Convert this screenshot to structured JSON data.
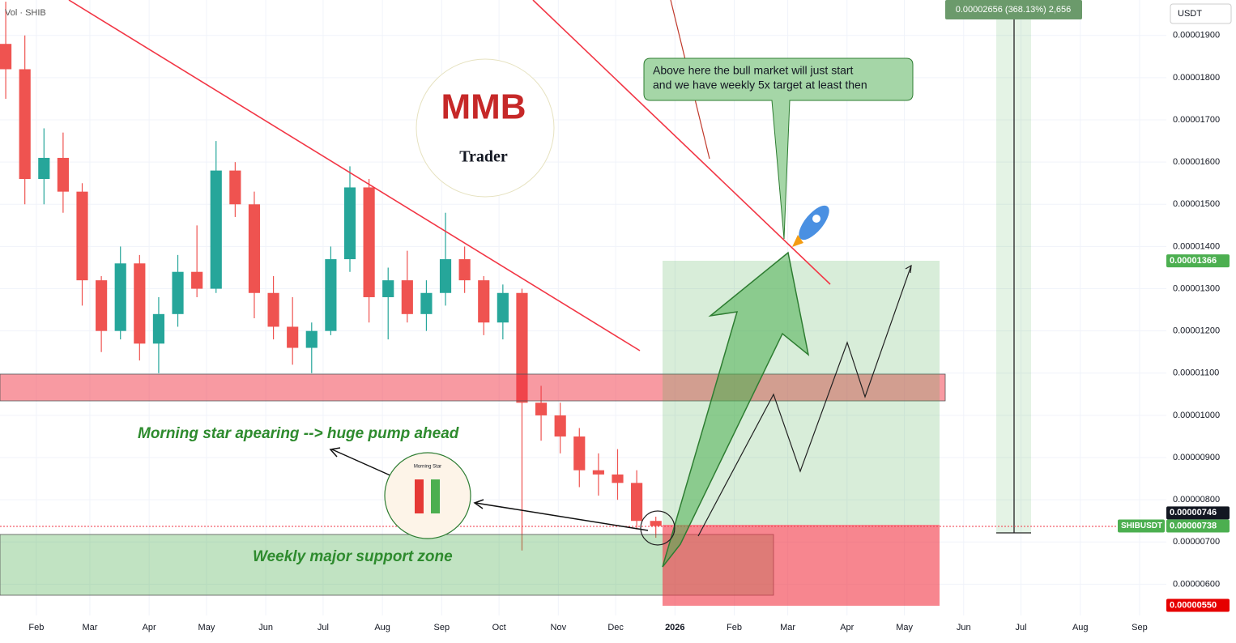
{
  "header": {
    "volume_label": "Vol · SHIB",
    "currency": "USDT",
    "measure_label": "0.00002656 (368.13%) 2,656"
  },
  "annotations": {
    "bull_note": [
      "Above here the bull market will just start",
      "and we have weekly 5x target at least then"
    ],
    "morning_star_note": "Morning star apearing --> huge pump ahead",
    "support_note": "Weekly major support zone",
    "morning_star_icon": "Morning Star",
    "logo_letters": "MMB",
    "logo_word": "Trader"
  },
  "chart_data": {
    "type": "candlestick",
    "symbol": "SHIBUSDT",
    "up_color": "#26a69a",
    "down_color": "#ef5350",
    "x": [
      15,
      25,
      35,
      45,
      55,
      65,
      75,
      85,
      95,
      105,
      115,
      125,
      135,
      145,
      155,
      165,
      175,
      185,
      195,
      205,
      215,
      225,
      235,
      245,
      255,
      265,
      275,
      285,
      295,
      305,
      315,
      325,
      335,
      345,
      355
    ],
    "open": [
      1.88e-05,
      1.82e-05,
      1.56e-05,
      1.61e-05,
      1.53e-05,
      1.32e-05,
      1.2e-05,
      1.36e-05,
      1.17e-05,
      1.24e-05,
      1.34e-05,
      1.3e-05,
      1.58e-05,
      1.5e-05,
      1.29e-05,
      1.21e-05,
      1.16e-05,
      1.2e-05,
      1.37e-05,
      1.54e-05,
      1.28e-05,
      1.32e-05,
      1.24e-05,
      1.29e-05,
      1.37e-05,
      1.32e-05,
      1.22e-05,
      1.29e-05,
      1.03e-05,
      1e-05,
      9.5e-06,
      8.7e-06,
      8.6e-06,
      8.4e-06,
      7.5e-06
    ],
    "high": [
      1.98e-05,
      1.9e-05,
      1.68e-05,
      1.67e-05,
      1.55e-05,
      1.33e-05,
      1.4e-05,
      1.38e-05,
      1.28e-05,
      1.38e-05,
      1.45e-05,
      1.65e-05,
      1.6e-05,
      1.53e-05,
      1.33e-05,
      1.28e-05,
      1.22e-05,
      1.4e-05,
      1.59e-05,
      1.56e-05,
      1.35e-05,
      1.39e-05,
      1.32e-05,
      1.48e-05,
      1.4e-05,
      1.33e-05,
      1.31e-05,
      1.3e-05,
      1.07e-05,
      1.03e-05,
      9.7e-06,
      9.1e-06,
      9.2e-06,
      8.7e-06,
      7.6e-06
    ],
    "low": [
      1.75e-05,
      1.5e-05,
      1.5e-05,
      1.48e-05,
      1.26e-05,
      1.15e-05,
      1.18e-05,
      1.13e-05,
      1.1e-05,
      1.21e-05,
      1.28e-05,
      1.29e-05,
      1.47e-05,
      1.23e-05,
      1.18e-05,
      1.12e-05,
      1.1e-05,
      1.19e-05,
      1.34e-05,
      1.22e-05,
      1.18e-05,
      1.22e-05,
      1.2e-05,
      1.26e-05,
      1.29e-05,
      1.19e-05,
      1.18e-05,
      6.8e-06,
      9.4e-06,
      9.1e-06,
      8.3e-06,
      8.1e-06,
      8e-06,
      7.3e-06,
      7.1e-06
    ],
    "close": [
      1.82e-05,
      1.56e-05,
      1.61e-05,
      1.53e-05,
      1.32e-05,
      1.2e-05,
      1.36e-05,
      1.17e-05,
      1.24e-05,
      1.34e-05,
      1.3e-05,
      1.58e-05,
      1.5e-05,
      1.29e-05,
      1.21e-05,
      1.16e-05,
      1.2e-05,
      1.37e-05,
      1.54e-05,
      1.28e-05,
      1.32e-05,
      1.24e-05,
      1.29e-05,
      1.37e-05,
      1.32e-05,
      1.22e-05,
      1.29e-05,
      1.03e-05,
      1e-05,
      9.5e-06,
      8.7e-06,
      8.6e-06,
      8.4e-06,
      7.5e-06,
      7.38e-06
    ],
    "xlim": [
      12,
      622
    ],
    "xticks": [
      {
        "value": 31,
        "label": "Feb"
      },
      {
        "value": 59,
        "label": "Mar"
      },
      {
        "value": 90,
        "label": "Apr"
      },
      {
        "value": 120,
        "label": "May"
      },
      {
        "value": 151,
        "label": "Jun"
      },
      {
        "value": 181,
        "label": "Jul"
      },
      {
        "value": 212,
        "label": "Aug"
      },
      {
        "value": 243,
        "label": "Sep"
      },
      {
        "value": 273,
        "label": "Oct"
      },
      {
        "value": 304,
        "label": "Nov"
      },
      {
        "value": 334,
        "label": "Dec"
      },
      {
        "value": 365,
        "label": "2026"
      },
      {
        "value": 396,
        "label": "Feb"
      },
      {
        "value": 424,
        "label": "Mar"
      },
      {
        "value": 455,
        "label": "Apr"
      },
      {
        "value": 485,
        "label": "May"
      },
      {
        "value": 516,
        "label": "Jun"
      },
      {
        "value": 546,
        "label": "Jul"
      },
      {
        "value": 577,
        "label": "Aug"
      },
      {
        "value": 608,
        "label": "Sep"
      }
    ],
    "ylim": [
      5.26e-06,
      1.984e-05
    ],
    "yticks": [
      {
        "value": 6e-06,
        "label": "0.00000600"
      },
      {
        "value": 7e-06,
        "label": "0.00000700"
      },
      {
        "value": 8e-06,
        "label": "0.00000800"
      },
      {
        "value": 9e-06,
        "label": "0.00000900"
      },
      {
        "value": 1e-05,
        "label": "0.00001000"
      },
      {
        "value": 1.1e-05,
        "label": "0.00001100"
      },
      {
        "value": 1.2e-05,
        "label": "0.00001200"
      },
      {
        "value": 1.3e-05,
        "label": "0.00001300"
      },
      {
        "value": 1.4e-05,
        "label": "0.00001400"
      },
      {
        "value": 1.5e-05,
        "label": "0.00001500"
      },
      {
        "value": 1.6e-05,
        "label": "0.00001600"
      },
      {
        "value": 1.7e-05,
        "label": "0.00001700"
      },
      {
        "value": 1.8e-05,
        "label": "0.00001800"
      },
      {
        "value": 1.9e-05,
        "label": "0.00001900"
      }
    ],
    "price_tags": [
      {
        "value": 1.366e-05,
        "label": "0.00001366",
        "color": "#4caf50"
      },
      {
        "value": 7.46e-06,
        "label": "0.00000746",
        "color": "#131722"
      },
      {
        "value": 7.38e-06,
        "label": "0.00000738",
        "color": "#4caf50"
      },
      {
        "value": 5.5e-06,
        "label": "0.00000550",
        "color": "#e60000"
      }
    ]
  }
}
